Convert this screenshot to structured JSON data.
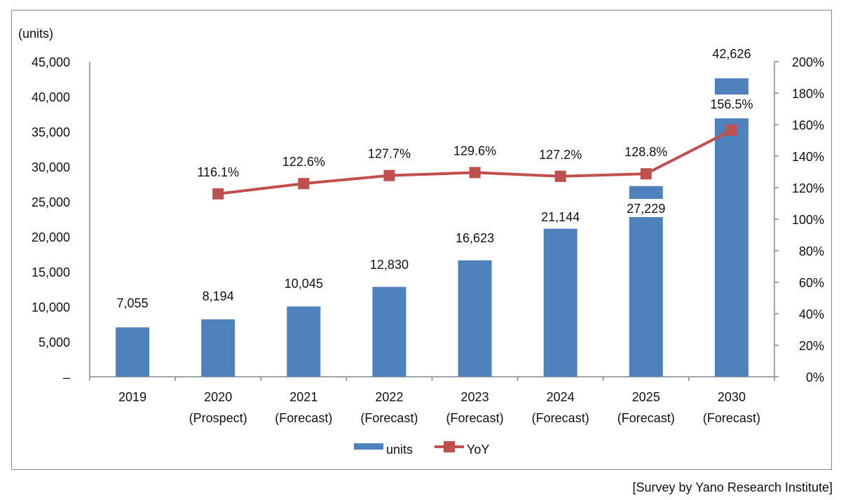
{
  "chart_data": {
    "type": "bar+line",
    "categories": [
      [
        "2019",
        ""
      ],
      [
        "2020",
        "(Prospect)"
      ],
      [
        "2021",
        "(Forecast)"
      ],
      [
        "2022",
        "(Forecast)"
      ],
      [
        "2023",
        "(Forecast)"
      ],
      [
        "2024",
        "(Forecast)"
      ],
      [
        "2025",
        "(Forecast)"
      ],
      [
        "2030",
        "(Forecast)"
      ]
    ],
    "series": [
      {
        "name": "units",
        "type": "bar",
        "axis": "left",
        "color": "#4f81bd",
        "values": [
          7055,
          8194,
          10045,
          12830,
          16623,
          21144,
          27229,
          42626
        ],
        "labels": [
          "7,055",
          "8,194",
          "10,045",
          "12,830",
          "16,623",
          "21,144",
          "27,229",
          "42,626"
        ]
      },
      {
        "name": "YoY",
        "type": "line",
        "axis": "right",
        "color": "#c0504d",
        "values": [
          null,
          116.1,
          122.6,
          127.7,
          129.6,
          127.2,
          128.8,
          156.5
        ],
        "labels": [
          "",
          "116.1%",
          "122.6%",
          "127.7%",
          "129.6%",
          "127.2%",
          "128.8%",
          "156.5%"
        ]
      }
    ],
    "ylabel": "(units)",
    "ylim": [
      0,
      45000
    ],
    "y2lim": [
      0,
      200
    ],
    "yticks": [
      "–",
      "5,000",
      "10,000",
      "15,000",
      "20,000",
      "25,000",
      "30,000",
      "35,000",
      "40,000",
      "45,000"
    ],
    "y2ticks": [
      "0%",
      "20%",
      "40%",
      "60%",
      "80%",
      "100%",
      "120%",
      "140%",
      "160%",
      "180%",
      "200%"
    ],
    "grid": false,
    "legend": {
      "placement": "bottom",
      "entries": [
        "units",
        "YoY"
      ]
    }
  },
  "source": "[Survey by Yano Research Institute]"
}
